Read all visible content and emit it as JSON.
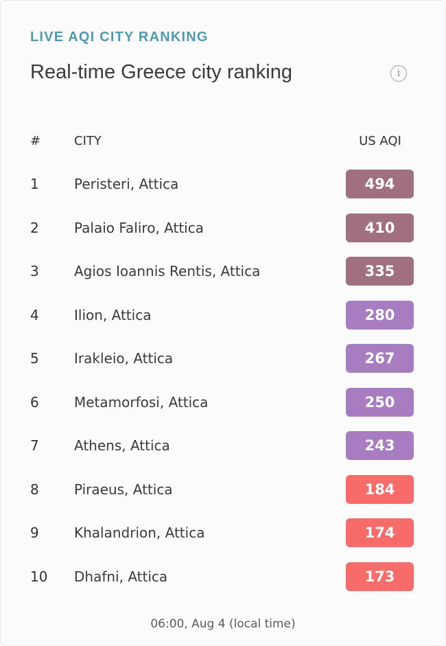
{
  "header": {
    "eyebrow": "LIVE AQI CITY RANKING",
    "title": "Real-time Greece city ranking",
    "info_icon": "info-icon",
    "info_glyph": "i"
  },
  "table": {
    "columns": [
      "#",
      "CITY",
      "US AQI"
    ],
    "rows": [
      {
        "rank": "1",
        "city": "Peristeri, Attica",
        "aqi": "494",
        "color": "#a07080"
      },
      {
        "rank": "2",
        "city": "Palaio Faliro, Attica",
        "aqi": "410",
        "color": "#a07080"
      },
      {
        "rank": "3",
        "city": "Agios Ioannis Rentis, Attica",
        "aqi": "335",
        "color": "#a07080"
      },
      {
        "rank": "4",
        "city": "Ilion, Attica",
        "aqi": "280",
        "color": "#a87cc0"
      },
      {
        "rank": "5",
        "city": "Irakleio, Attica",
        "aqi": "267",
        "color": "#a87cc0"
      },
      {
        "rank": "6",
        "city": "Metamorfosi, Attica",
        "aqi": "250",
        "color": "#a87cc0"
      },
      {
        "rank": "7",
        "city": "Athens, Attica",
        "aqi": "243",
        "color": "#a87cc0"
      },
      {
        "rank": "8",
        "city": "Piraeus, Attica",
        "aqi": "184",
        "color": "#f76b6b"
      },
      {
        "rank": "9",
        "city": "Khalandrion, Attica",
        "aqi": "174",
        "color": "#f76b6b"
      },
      {
        "rank": "10",
        "city": "Dhafni, Attica",
        "aqi": "173",
        "color": "#f76b6b"
      }
    ]
  },
  "footer": {
    "timestamp": "06:00, Aug 4 (local time)"
  }
}
